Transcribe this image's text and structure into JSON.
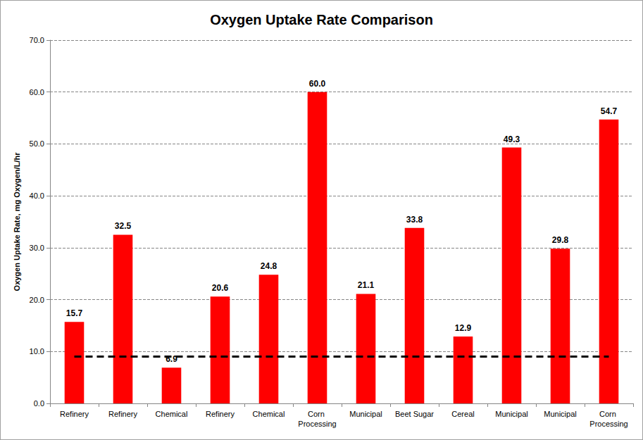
{
  "chart_data": {
    "type": "bar",
    "title": "Oxygen Uptake Rate Comparison",
    "y_label": "Oxygen Uptake Rate, mg Oxygen/L/hr",
    "categories": [
      "Refinery",
      "Refinery",
      "Chemical",
      "Refinery",
      "Chemical",
      "Corn Processing",
      "Municipal",
      "Beet Sugar",
      "Cereal",
      "Municipal",
      "Municipal",
      "Corn Processing"
    ],
    "values": [
      15.7,
      32.5,
      6.9,
      20.6,
      24.8,
      60.0,
      21.1,
      33.8,
      12.9,
      49.3,
      29.8,
      54.7
    ],
    "value_labels": [
      "15.7",
      "32.5",
      "6.9",
      "20.6",
      "24.8",
      "60.0",
      "21.1",
      "33.8",
      "12.9",
      "49.3",
      "29.8",
      "54.7"
    ],
    "color": "#ff0000",
    "ylim": [
      0,
      70
    ],
    "yticks": [
      {
        "value": 0,
        "label": "0.0"
      },
      {
        "value": 10,
        "label": "10.0"
      },
      {
        "value": 20,
        "label": "20.0"
      },
      {
        "value": 30,
        "label": "30.0"
      },
      {
        "value": 40,
        "label": "40.0"
      },
      {
        "value": 50,
        "label": "50.0"
      },
      {
        "value": 60,
        "label": "60.0"
      },
      {
        "value": 70,
        "label": "70.0"
      }
    ],
    "grid": true,
    "data_labels": true,
    "reference_line": 9
  }
}
